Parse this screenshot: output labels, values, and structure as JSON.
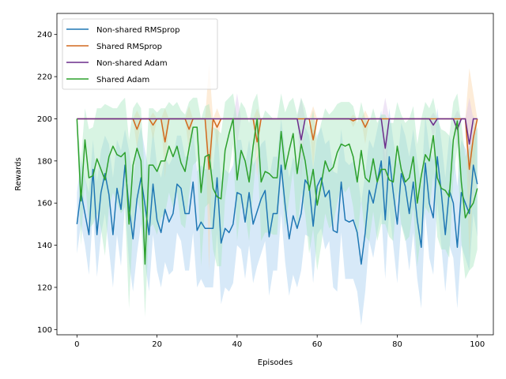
{
  "chart_data": {
    "type": "line",
    "title": "",
    "xlabel": "Episodes",
    "ylabel": "Rewards",
    "xlim": [
      -5,
      104
    ],
    "ylim": [
      97.5,
      250
    ],
    "xticks": [
      0,
      20,
      40,
      60,
      80,
      100
    ],
    "yticks": [
      100,
      120,
      140,
      160,
      180,
      200,
      220,
      240
    ],
    "grid": false,
    "legend_position": "top-left",
    "series": [
      {
        "name": "Non-shared RMSprop",
        "color": "#1f77b4",
        "band_color": "#a6cff0",
        "values": [
          150,
          165,
          155,
          145,
          176,
          145,
          165,
          174,
          164,
          145,
          167,
          157,
          178,
          158,
          143,
          162,
          172,
          159,
          145,
          169,
          152,
          146,
          157,
          151,
          155,
          169,
          167,
          155,
          155,
          170,
          147,
          151,
          148,
          148,
          148,
          172,
          141,
          148,
          146,
          150,
          165,
          164,
          151,
          165,
          150,
          156,
          162,
          166,
          144,
          155,
          155,
          178,
          159,
          143,
          154,
          148,
          155,
          171,
          168,
          149,
          168,
          172,
          163,
          166,
          147,
          146,
          170,
          152,
          151,
          152,
          146,
          131,
          146,
          166,
          160,
          170,
          180,
          152,
          182,
          165,
          150,
          174,
          168,
          155,
          170,
          152,
          139,
          179,
          160,
          153,
          182,
          165,
          145,
          166,
          160,
          139,
          165,
          160,
          155,
          178,
          169
        ],
        "band_upper": [
          165,
          180,
          172,
          165,
          190,
          170,
          185,
          192,
          188,
          172,
          190,
          185,
          195,
          185,
          170,
          188,
          196,
          185,
          175,
          195,
          178,
          172,
          182,
          178,
          182,
          192,
          192,
          182,
          182,
          195,
          175,
          178,
          176,
          176,
          176,
          198,
          170,
          176,
          174,
          178,
          190,
          190,
          178,
          190,
          178,
          182,
          188,
          190,
          172,
          182,
          182,
          200,
          185,
          172,
          182,
          176,
          182,
          196,
          192,
          176,
          192,
          196,
          188,
          190,
          175,
          174,
          195,
          180,
          178,
          180,
          175,
          160,
          174,
          190,
          186,
          195,
          204,
          180,
          205,
          190,
          178,
          198,
          192,
          182,
          195,
          180,
          168,
          202,
          186,
          180,
          205,
          190,
          172,
          192,
          186,
          168,
          190,
          186,
          182,
          202,
          195
        ],
        "band_lower": [
          136,
          150,
          140,
          126,
          155,
          125,
          145,
          155,
          138,
          120,
          145,
          130,
          160,
          132,
          118,
          136,
          150,
          132,
          118,
          145,
          128,
          120,
          132,
          126,
          128,
          146,
          142,
          128,
          128,
          146,
          120,
          124,
          120,
          120,
          120,
          146,
          112,
          120,
          118,
          122,
          140,
          138,
          124,
          140,
          122,
          130,
          136,
          142,
          116,
          128,
          128,
          155,
          132,
          116,
          126,
          120,
          128,
          145,
          144,
          122,
          145,
          148,
          138,
          142,
          120,
          118,
          146,
          124,
          124,
          124,
          118,
          102,
          118,
          142,
          134,
          146,
          156,
          124,
          158,
          140,
          122,
          150,
          144,
          128,
          146,
          124,
          110,
          155,
          134,
          126,
          160,
          140,
          118,
          140,
          134,
          110,
          140,
          134,
          128,
          155,
          144
        ]
      },
      {
        "name": "Shared RMSprop",
        "color": "#d2691e",
        "band_color": "#fbd5a8",
        "values": [
          200,
          200,
          200,
          200,
          200,
          200,
          200,
          200,
          200,
          200,
          200,
          200,
          200,
          200,
          200,
          195,
          200,
          200,
          200,
          197,
          200,
          200,
          189,
          200,
          200,
          200,
          200,
          200,
          195,
          200,
          200,
          200,
          200,
          176,
          200,
          196,
          200,
          200,
          200,
          200,
          200,
          200,
          200,
          200,
          200,
          189,
          200,
          200,
          200,
          200,
          200,
          200,
          200,
          200,
          200,
          200,
          200,
          200,
          200,
          190,
          200,
          200,
          200,
          200,
          200,
          200,
          200,
          200,
          200,
          199,
          200,
          200,
          196,
          200,
          200,
          200,
          200,
          200,
          200,
          200,
          200,
          200,
          200,
          200,
          200,
          200,
          200,
          200,
          200,
          200,
          200,
          200,
          200,
          200,
          200,
          200,
          200,
          200,
          176,
          191,
          200
        ],
        "band_upper": [
          200,
          200,
          200,
          200,
          200,
          200,
          200,
          200,
          200,
          200,
          200,
          200,
          200,
          200,
          200,
          204,
          200,
          200,
          200,
          203,
          200,
          200,
          205,
          200,
          200,
          200,
          200,
          200,
          206,
          200,
          200,
          200,
          200,
          226,
          200,
          205,
          200,
          200,
          200,
          200,
          200,
          200,
          200,
          200,
          200,
          205,
          200,
          200,
          200,
          200,
          200,
          200,
          200,
          200,
          200,
          200,
          200,
          200,
          200,
          206,
          200,
          200,
          200,
          200,
          200,
          200,
          200,
          200,
          200,
          202,
          200,
          200,
          204,
          200,
          200,
          200,
          200,
          200,
          200,
          200,
          200,
          200,
          200,
          200,
          200,
          200,
          200,
          200,
          200,
          200,
          200,
          200,
          200,
          200,
          200,
          200,
          200,
          200,
          224,
          212,
          200
        ],
        "band_lower": [
          200,
          200,
          200,
          200,
          200,
          200,
          200,
          200,
          200,
          200,
          200,
          200,
          200,
          200,
          200,
          186,
          200,
          200,
          200,
          190,
          200,
          200,
          172,
          200,
          200,
          200,
          200,
          200,
          184,
          200,
          200,
          200,
          200,
          128,
          200,
          186,
          200,
          200,
          200,
          200,
          200,
          200,
          200,
          200,
          200,
          172,
          200,
          200,
          200,
          200,
          200,
          200,
          200,
          200,
          200,
          200,
          200,
          200,
          200,
          176,
          200,
          200,
          200,
          200,
          200,
          200,
          200,
          200,
          200,
          196,
          200,
          200,
          188,
          200,
          200,
          200,
          200,
          200,
          200,
          200,
          200,
          200,
          200,
          200,
          200,
          200,
          200,
          200,
          200,
          200,
          200,
          200,
          200,
          200,
          200,
          200,
          200,
          200,
          134,
          168,
          200
        ]
      },
      {
        "name": "Non-shared Adam",
        "color": "#6b2d8c",
        "band_color": "#dcc6ea",
        "values": [
          200,
          200,
          200,
          200,
          200,
          200,
          200,
          200,
          200,
          200,
          200,
          200,
          200,
          200,
          200,
          200,
          200,
          200,
          200,
          200,
          200,
          200,
          200,
          200,
          200,
          200,
          200,
          200,
          200,
          200,
          200,
          200,
          200,
          200,
          200,
          200,
          200,
          200,
          200,
          200,
          200,
          200,
          200,
          200,
          200,
          200,
          200,
          200,
          200,
          200,
          200,
          200,
          200,
          200,
          200,
          200,
          190,
          200,
          200,
          200,
          200,
          200,
          200,
          200,
          200,
          200,
          200,
          200,
          200,
          200,
          200,
          200,
          200,
          200,
          200,
          200,
          200,
          186,
          200,
          200,
          200,
          200,
          200,
          200,
          200,
          200,
          200,
          200,
          200,
          197,
          200,
          200,
          200,
          200,
          200,
          195,
          200,
          200,
          188,
          200,
          200
        ],
        "band_upper": [
          200,
          200,
          200,
          200,
          200,
          200,
          200,
          200,
          200,
          200,
          200,
          200,
          200,
          200,
          200,
          200,
          200,
          200,
          200,
          200,
          200,
          200,
          200,
          200,
          200,
          200,
          200,
          200,
          200,
          200,
          200,
          200,
          200,
          200,
          200,
          200,
          200,
          200,
          200,
          200,
          212,
          200,
          200,
          200,
          200,
          200,
          200,
          200,
          200,
          200,
          200,
          200,
          200,
          200,
          200,
          200,
          210,
          200,
          200,
          200,
          200,
          200,
          200,
          200,
          200,
          200,
          200,
          200,
          200,
          200,
          200,
          200,
          200,
          200,
          200,
          200,
          200,
          210,
          200,
          200,
          200,
          200,
          200,
          200,
          200,
          200,
          200,
          200,
          200,
          203,
          200,
          200,
          200,
          200,
          200,
          204,
          200,
          200,
          210,
          200,
          200
        ],
        "band_lower": [
          200,
          200,
          200,
          200,
          200,
          200,
          200,
          200,
          200,
          200,
          200,
          200,
          200,
          200,
          200,
          200,
          200,
          200,
          200,
          200,
          200,
          200,
          200,
          200,
          200,
          200,
          200,
          200,
          200,
          200,
          200,
          200,
          200,
          200,
          200,
          200,
          200,
          200,
          200,
          200,
          188,
          200,
          200,
          200,
          200,
          200,
          200,
          200,
          200,
          200,
          200,
          200,
          200,
          200,
          200,
          200,
          170,
          200,
          200,
          200,
          200,
          200,
          200,
          200,
          200,
          200,
          200,
          200,
          200,
          200,
          200,
          200,
          200,
          200,
          200,
          200,
          200,
          162,
          200,
          200,
          200,
          200,
          200,
          200,
          200,
          200,
          200,
          200,
          200,
          190,
          200,
          200,
          200,
          200,
          200,
          186,
          200,
          200,
          166,
          200,
          200
        ]
      },
      {
        "name": "Shared Adam",
        "color": "#2ca02c",
        "band_color": "#a8e6c0",
        "values": [
          200,
          161,
          190,
          172,
          173,
          181,
          176,
          171,
          182,
          187,
          183,
          182,
          184,
          150,
          178,
          186,
          180,
          131,
          178,
          178,
          175,
          180,
          180,
          187,
          182,
          187,
          179,
          175,
          186,
          196,
          196,
          165,
          182,
          183,
          167,
          163,
          162,
          185,
          193,
          200,
          171,
          185,
          180,
          170,
          187,
          200,
          170,
          175,
          174,
          172,
          172,
          194,
          176,
          185,
          193,
          174,
          188,
          180,
          166,
          176,
          159,
          169,
          180,
          175,
          177,
          184,
          188,
          187,
          188,
          182,
          170,
          185,
          172,
          170,
          181,
          170,
          176,
          176,
          171,
          170,
          187,
          176,
          170,
          172,
          182,
          160,
          173,
          183,
          180,
          192,
          172,
          167,
          166,
          163,
          190,
          199,
          170,
          153,
          157,
          160,
          167
        ],
        "band_upper": [
          200,
          180,
          205,
          195,
          196,
          205,
          205,
          207,
          206,
          205,
          205,
          208,
          210,
          190,
          205,
          208,
          205,
          170,
          205,
          205,
          203,
          205,
          205,
          208,
          206,
          208,
          204,
          202,
          208,
          210,
          210,
          200,
          206,
          207,
          196,
          195,
          193,
          208,
          210,
          212,
          200,
          208,
          205,
          198,
          208,
          212,
          198,
          204,
          202,
          200,
          200,
          212,
          203,
          208,
          210,
          202,
          210,
          205,
          196,
          204,
          190,
          198,
          205,
          202,
          204,
          207,
          208,
          208,
          208,
          206,
          198,
          208,
          200,
          198,
          205,
          198,
          202,
          202,
          198,
          198,
          208,
          202,
          198,
          200,
          206,
          188,
          200,
          208,
          205,
          210,
          200,
          195,
          194,
          192,
          208,
          212,
          198,
          182,
          186,
          190,
          196
        ],
        "band_lower": [
          200,
          140,
          172,
          148,
          150,
          155,
          148,
          135,
          158,
          165,
          160,
          155,
          158,
          110,
          150,
          162,
          155,
          106,
          148,
          150,
          145,
          153,
          155,
          165,
          158,
          165,
          150,
          148,
          164,
          178,
          180,
          130,
          158,
          160,
          138,
          130,
          130,
          162,
          175,
          188,
          142,
          160,
          155,
          142,
          165,
          188,
          142,
          146,
          146,
          145,
          145,
          174,
          148,
          162,
          176,
          146,
          165,
          155,
          136,
          148,
          128,
          140,
          155,
          148,
          150,
          160,
          168,
          165,
          168,
          158,
          142,
          162,
          144,
          142,
          156,
          142,
          150,
          150,
          144,
          142,
          166,
          150,
          142,
          144,
          158,
          130,
          146,
          158,
          155,
          174,
          144,
          138,
          138,
          134,
          172,
          186,
          142,
          124,
          128,
          130,
          138
        ]
      }
    ]
  }
}
